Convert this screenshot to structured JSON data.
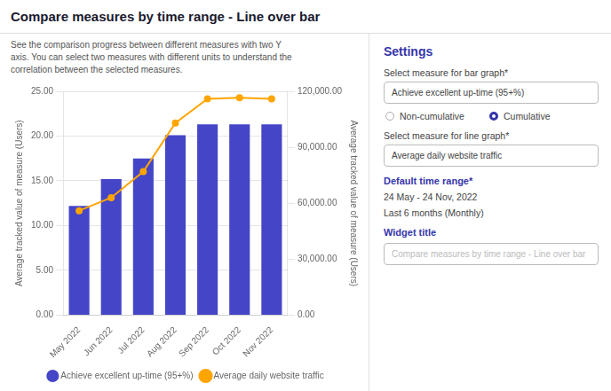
{
  "chart_data": {
    "type": "bar",
    "title": "Compare measures by time range - Line over bar",
    "subtitle": "See the comparison progress between different measures with two Y\naxis. You can select two measures with different units to understand the\ncorrelation between the selected measures.",
    "categories": [
      "May 2022",
      "Jun 2022",
      "Jul 2022",
      "Aug 2022",
      "Sep 2022",
      "Oct 2022",
      "Nov 2022"
    ],
    "series": [
      {
        "name": "Achieve excellent up-time (95+%)",
        "type": "bar",
        "color": "#4545c8",
        "values": [
          12.2,
          15.2,
          17.5,
          20.1,
          21.3,
          21.3,
          21.3
        ]
      },
      {
        "name": "Average daily website traffic",
        "type": "line",
        "color": "#FFA500",
        "marker": "circle",
        "axis": "y2",
        "values": [
          56000,
          63000,
          77000,
          103000,
          116000,
          116500,
          116000
        ]
      }
    ],
    "ylabel": "Average tracked value of measure (Users)",
    "y2label": "Average tracked value of measure (Users)",
    "ylim": [
      0,
      25
    ],
    "yticks": [
      {
        "value": 0,
        "label": "0.00"
      },
      {
        "value": 5,
        "label": "5.00"
      },
      {
        "value": 10,
        "label": "10.00"
      },
      {
        "value": 15,
        "label": "15.00"
      },
      {
        "value": 20,
        "label": "20.00"
      },
      {
        "value": 25,
        "label": "25.00"
      }
    ],
    "y2lim": [
      0,
      120000
    ],
    "y2ticks": [
      {
        "value": 0,
        "label": "0.00"
      },
      {
        "value": 30000,
        "label": "30,000.00"
      },
      {
        "value": 60000,
        "label": "60,000.00"
      },
      {
        "value": 90000,
        "label": "90,000.00"
      },
      {
        "value": 120000,
        "label": "120,000.00"
      }
    ],
    "grid": true,
    "legend": "bottom",
    "annotations": [
      "Settings",
      "Select measure for bar graph*",
      "Achieve excellent up-time (95+%)",
      "Non-cumulative",
      "Cumulative",
      "Select measure for line graph*",
      "Average daily website traffic",
      "Default time range*",
      "24 May - 24 Nov, 2022",
      "Last 6 months (Monthly)",
      "Widget title",
      "Compare measures by time range - Line over bar"
    ]
  }
}
